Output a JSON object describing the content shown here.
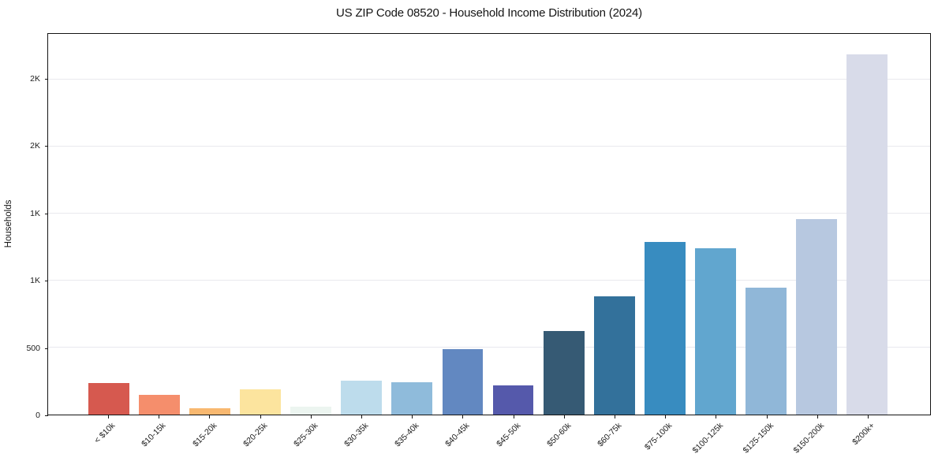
{
  "chart_data": {
    "type": "bar",
    "title": "US ZIP Code 08520 - Household Income Distribution (2024)",
    "xlabel": "",
    "ylabel": "Households",
    "categories": [
      "< $10k",
      "$10-15k",
      "$15-20k",
      "$20-25k",
      "$25-30k",
      "$30-35k",
      "$35-40k",
      "$40-45k",
      "$45-50k",
      "$50-60k",
      "$60-75k",
      "$75-100k",
      "$100-125k",
      "$125-150k",
      "$150-200k",
      "$200k+"
    ],
    "values": [
      235,
      145,
      50,
      190,
      60,
      250,
      240,
      490,
      215,
      625,
      880,
      1290,
      1240,
      945,
      1460,
      2690
    ],
    "bar_colors": [
      "#d6594f",
      "#f58e6c",
      "#f8b870",
      "#fce49e",
      "#ecf5f0",
      "#bddcec",
      "#8fbbdb",
      "#6288c1",
      "#5559ab",
      "#365a74",
      "#33719b",
      "#388cc0",
      "#61a6cf",
      "#90b7d8",
      "#b7c8e0",
      "#d8dbe9"
    ],
    "ylim": [
      0,
      2840
    ],
    "yticks": [
      {
        "value": 0,
        "label": "0"
      },
      {
        "value": 500,
        "label": "500"
      },
      {
        "value": 1000,
        "label": "1K"
      },
      {
        "value": 1500,
        "label": "1K"
      },
      {
        "value": 2000,
        "label": "2K"
      },
      {
        "value": 2500,
        "label": "2K"
      }
    ],
    "grid": "horizontal",
    "legend": "none",
    "colors": {
      "background": "#ffffff",
      "gridline": "#e9e9ee",
      "spine": "#141414",
      "text": "#1c1c1c"
    }
  }
}
